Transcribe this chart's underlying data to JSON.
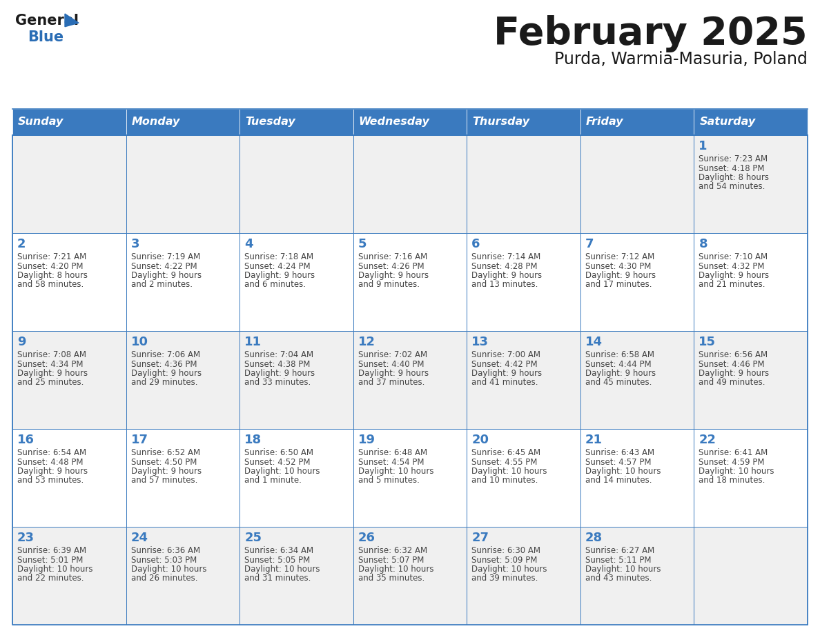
{
  "title": "February 2025",
  "subtitle": "Purda, Warmia-Masuria, Poland",
  "days_of_week": [
    "Sunday",
    "Monday",
    "Tuesday",
    "Wednesday",
    "Thursday",
    "Friday",
    "Saturday"
  ],
  "header_bg": "#3a7abf",
  "header_text_color": "#ffffff",
  "cell_bg_light": "#f0f0f0",
  "cell_bg_white": "#ffffff",
  "cell_border_color": "#3a7abf",
  "title_color": "#1a1a1a",
  "subtitle_color": "#1a1a1a",
  "day_number_color": "#3a7abf",
  "info_color": "#444444",
  "logo_general_color": "#1a1a1a",
  "logo_blue_color": "#2a6db5",
  "calendar_data": [
    [
      null,
      null,
      null,
      null,
      null,
      null,
      {
        "day": 1,
        "sunrise": "7:23 AM",
        "sunset": "4:18 PM",
        "daylight": "8 hours\nand 54 minutes."
      }
    ],
    [
      {
        "day": 2,
        "sunrise": "7:21 AM",
        "sunset": "4:20 PM",
        "daylight": "8 hours\nand 58 minutes."
      },
      {
        "day": 3,
        "sunrise": "7:19 AM",
        "sunset": "4:22 PM",
        "daylight": "9 hours\nand 2 minutes."
      },
      {
        "day": 4,
        "sunrise": "7:18 AM",
        "sunset": "4:24 PM",
        "daylight": "9 hours\nand 6 minutes."
      },
      {
        "day": 5,
        "sunrise": "7:16 AM",
        "sunset": "4:26 PM",
        "daylight": "9 hours\nand 9 minutes."
      },
      {
        "day": 6,
        "sunrise": "7:14 AM",
        "sunset": "4:28 PM",
        "daylight": "9 hours\nand 13 minutes."
      },
      {
        "day": 7,
        "sunrise": "7:12 AM",
        "sunset": "4:30 PM",
        "daylight": "9 hours\nand 17 minutes."
      },
      {
        "day": 8,
        "sunrise": "7:10 AM",
        "sunset": "4:32 PM",
        "daylight": "9 hours\nand 21 minutes."
      }
    ],
    [
      {
        "day": 9,
        "sunrise": "7:08 AM",
        "sunset": "4:34 PM",
        "daylight": "9 hours\nand 25 minutes."
      },
      {
        "day": 10,
        "sunrise": "7:06 AM",
        "sunset": "4:36 PM",
        "daylight": "9 hours\nand 29 minutes."
      },
      {
        "day": 11,
        "sunrise": "7:04 AM",
        "sunset": "4:38 PM",
        "daylight": "9 hours\nand 33 minutes."
      },
      {
        "day": 12,
        "sunrise": "7:02 AM",
        "sunset": "4:40 PM",
        "daylight": "9 hours\nand 37 minutes."
      },
      {
        "day": 13,
        "sunrise": "7:00 AM",
        "sunset": "4:42 PM",
        "daylight": "9 hours\nand 41 minutes."
      },
      {
        "day": 14,
        "sunrise": "6:58 AM",
        "sunset": "4:44 PM",
        "daylight": "9 hours\nand 45 minutes."
      },
      {
        "day": 15,
        "sunrise": "6:56 AM",
        "sunset": "4:46 PM",
        "daylight": "9 hours\nand 49 minutes."
      }
    ],
    [
      {
        "day": 16,
        "sunrise": "6:54 AM",
        "sunset": "4:48 PM",
        "daylight": "9 hours\nand 53 minutes."
      },
      {
        "day": 17,
        "sunrise": "6:52 AM",
        "sunset": "4:50 PM",
        "daylight": "9 hours\nand 57 minutes."
      },
      {
        "day": 18,
        "sunrise": "6:50 AM",
        "sunset": "4:52 PM",
        "daylight": "10 hours\nand 1 minute."
      },
      {
        "day": 19,
        "sunrise": "6:48 AM",
        "sunset": "4:54 PM",
        "daylight": "10 hours\nand 5 minutes."
      },
      {
        "day": 20,
        "sunrise": "6:45 AM",
        "sunset": "4:55 PM",
        "daylight": "10 hours\nand 10 minutes."
      },
      {
        "day": 21,
        "sunrise": "6:43 AM",
        "sunset": "4:57 PM",
        "daylight": "10 hours\nand 14 minutes."
      },
      {
        "day": 22,
        "sunrise": "6:41 AM",
        "sunset": "4:59 PM",
        "daylight": "10 hours\nand 18 minutes."
      }
    ],
    [
      {
        "day": 23,
        "sunrise": "6:39 AM",
        "sunset": "5:01 PM",
        "daylight": "10 hours\nand 22 minutes."
      },
      {
        "day": 24,
        "sunrise": "6:36 AM",
        "sunset": "5:03 PM",
        "daylight": "10 hours\nand 26 minutes."
      },
      {
        "day": 25,
        "sunrise": "6:34 AM",
        "sunset": "5:05 PM",
        "daylight": "10 hours\nand 31 minutes."
      },
      {
        "day": 26,
        "sunrise": "6:32 AM",
        "sunset": "5:07 PM",
        "daylight": "10 hours\nand 35 minutes."
      },
      {
        "day": 27,
        "sunrise": "6:30 AM",
        "sunset": "5:09 PM",
        "daylight": "10 hours\nand 39 minutes."
      },
      {
        "day": 28,
        "sunrise": "6:27 AM",
        "sunset": "5:11 PM",
        "daylight": "10 hours\nand 43 minutes."
      },
      null
    ]
  ]
}
